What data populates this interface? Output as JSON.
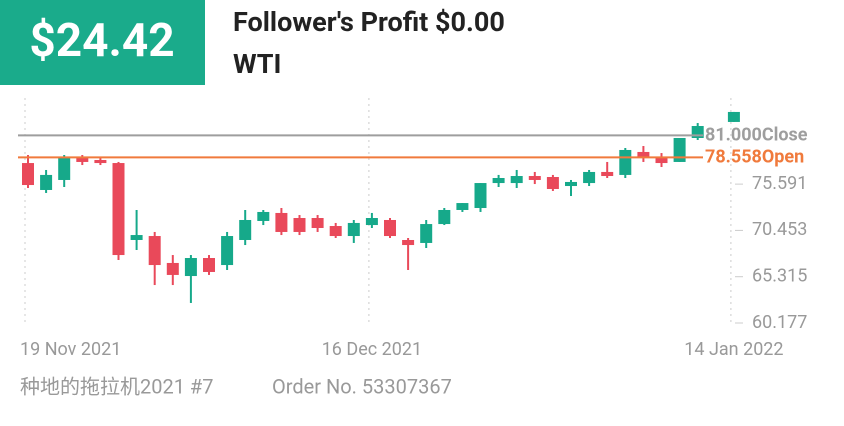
{
  "header": {
    "badge": "$24.42",
    "title": "Follower's Profit $0.00",
    "subtitle": "WTI"
  },
  "chart_data": {
    "type": "candlestick",
    "categories": [
      "19 Nov 2021",
      null,
      null,
      null,
      null,
      null,
      null,
      null,
      null,
      null,
      null,
      null,
      null,
      null,
      null,
      null,
      null,
      null,
      null,
      "16 Dec 2021",
      null,
      null,
      null,
      null,
      null,
      null,
      null,
      null,
      null,
      null,
      null,
      null,
      null,
      null,
      null,
      null,
      null,
      null,
      null,
      "14 Jan 2022"
    ],
    "open": [
      77.93,
      74.94,
      76.05,
      78.49,
      78.27,
      77.93,
      69.39,
      69.83,
      66.84,
      65.39,
      67.39,
      66.61,
      69.39,
      71.5,
      72.39,
      71.83,
      71.83,
      70.94,
      69.83,
      71.05,
      71.61,
      69.39,
      69.06,
      71.16,
      72.72,
      72.94,
      75.71,
      75.71,
      76.49,
      76.38,
      75.38,
      75.71,
      76.94,
      76.61,
      79.16,
      78.6,
      78.05,
      80.71,
      null,
      82.49
    ],
    "high": [
      78.82,
      77.16,
      78.82,
      78.82,
      78.49,
      78.05,
      72.72,
      70.28,
      67.72,
      67.72,
      67.72,
      70.28,
      72.72,
      72.72,
      72.94,
      72.16,
      72.16,
      71.28,
      71.61,
      72.39,
      71.83,
      69.61,
      71.61,
      72.94,
      73.49,
      75.71,
      76.61,
      77.16,
      76.94,
      76.61,
      76.05,
      77.16,
      78.05,
      79.6,
      79.82,
      79.04,
      80.71,
      82.37,
      null,
      83.6
    ],
    "low": [
      75.16,
      74.61,
      75.27,
      77.71,
      77.71,
      67.17,
      68.28,
      64.39,
      64.39,
      62.4,
      65.51,
      66.06,
      68.83,
      71.05,
      69.94,
      69.94,
      70.28,
      69.61,
      69.06,
      70.72,
      69.61,
      66.06,
      68.5,
      71.05,
      72.5,
      72.5,
      75.27,
      75.16,
      75.6,
      74.83,
      74.27,
      75.38,
      76.27,
      76.27,
      78.05,
      77.49,
      78.05,
      80.49,
      null,
      82.49
    ],
    "close": [
      75.49,
      76.61,
      78.49,
      78.05,
      77.93,
      67.72,
      69.94,
      66.61,
      65.51,
      67.39,
      65.84,
      69.83,
      71.61,
      72.5,
      70.28,
      70.28,
      70.72,
      69.83,
      71.28,
      71.83,
      69.83,
      68.83,
      71.16,
      72.72,
      73.49,
      75.71,
      76.27,
      76.49,
      76.05,
      75.05,
      75.83,
      76.94,
      76.49,
      79.38,
      78.49,
      77.93,
      80.71,
      82.04,
      null,
      83.6
    ],
    "up_color": "#16a98a",
    "down_color": "#e9495a",
    "ylim": [
      60.177,
      85.149
    ],
    "yticks": [
      60.177,
      65.315,
      70.453,
      75.591
    ],
    "lines": [
      {
        "name": "Close",
        "value": 81,
        "value_label": "81.000",
        "color": "#9e9e9e"
      },
      {
        "name": "Open",
        "value": 78.558,
        "value_label": "78.558",
        "color": "#f07a3c"
      }
    ]
  },
  "footer": {
    "account": "种地的拖拉机2021 #7",
    "order": "Order No. 53307367"
  }
}
